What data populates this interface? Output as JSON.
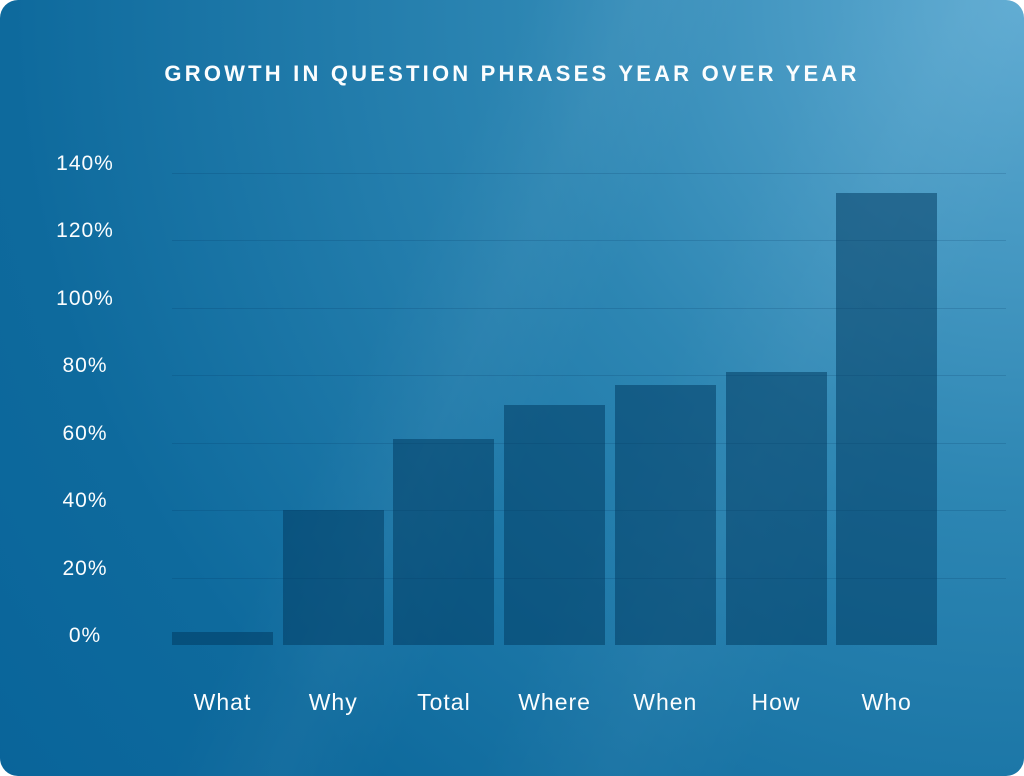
{
  "theme": {
    "background_light": "#5fabd2",
    "background_mid": "#2d86b3",
    "background_corner": "#0e6a9d",
    "background_dark": "#09649a",
    "bar_fill": "rgba(0, 57, 96, 0.52)",
    "gridline_color": "rgba(0, 45, 90, 0.16)",
    "text_color": "#fbfdfe"
  },
  "chart_data": {
    "type": "bar",
    "title": "GROWTH IN QUESTION PHRASES YEAR OVER YEAR",
    "categories": [
      "What",
      "Why",
      "Total",
      "Where",
      "When",
      "How",
      "Who"
    ],
    "values": [
      2,
      40,
      61,
      71,
      77,
      81,
      134
    ],
    "unit": "%",
    "xlabel": "",
    "ylabel": "",
    "ylim": [
      0,
      140
    ],
    "y_tick_interval": 20,
    "y_tick_labels": [
      "0%",
      "20%",
      "40%",
      "60%",
      "80%",
      "100%",
      "120%",
      "140%"
    ],
    "grid": true,
    "legend": false
  }
}
